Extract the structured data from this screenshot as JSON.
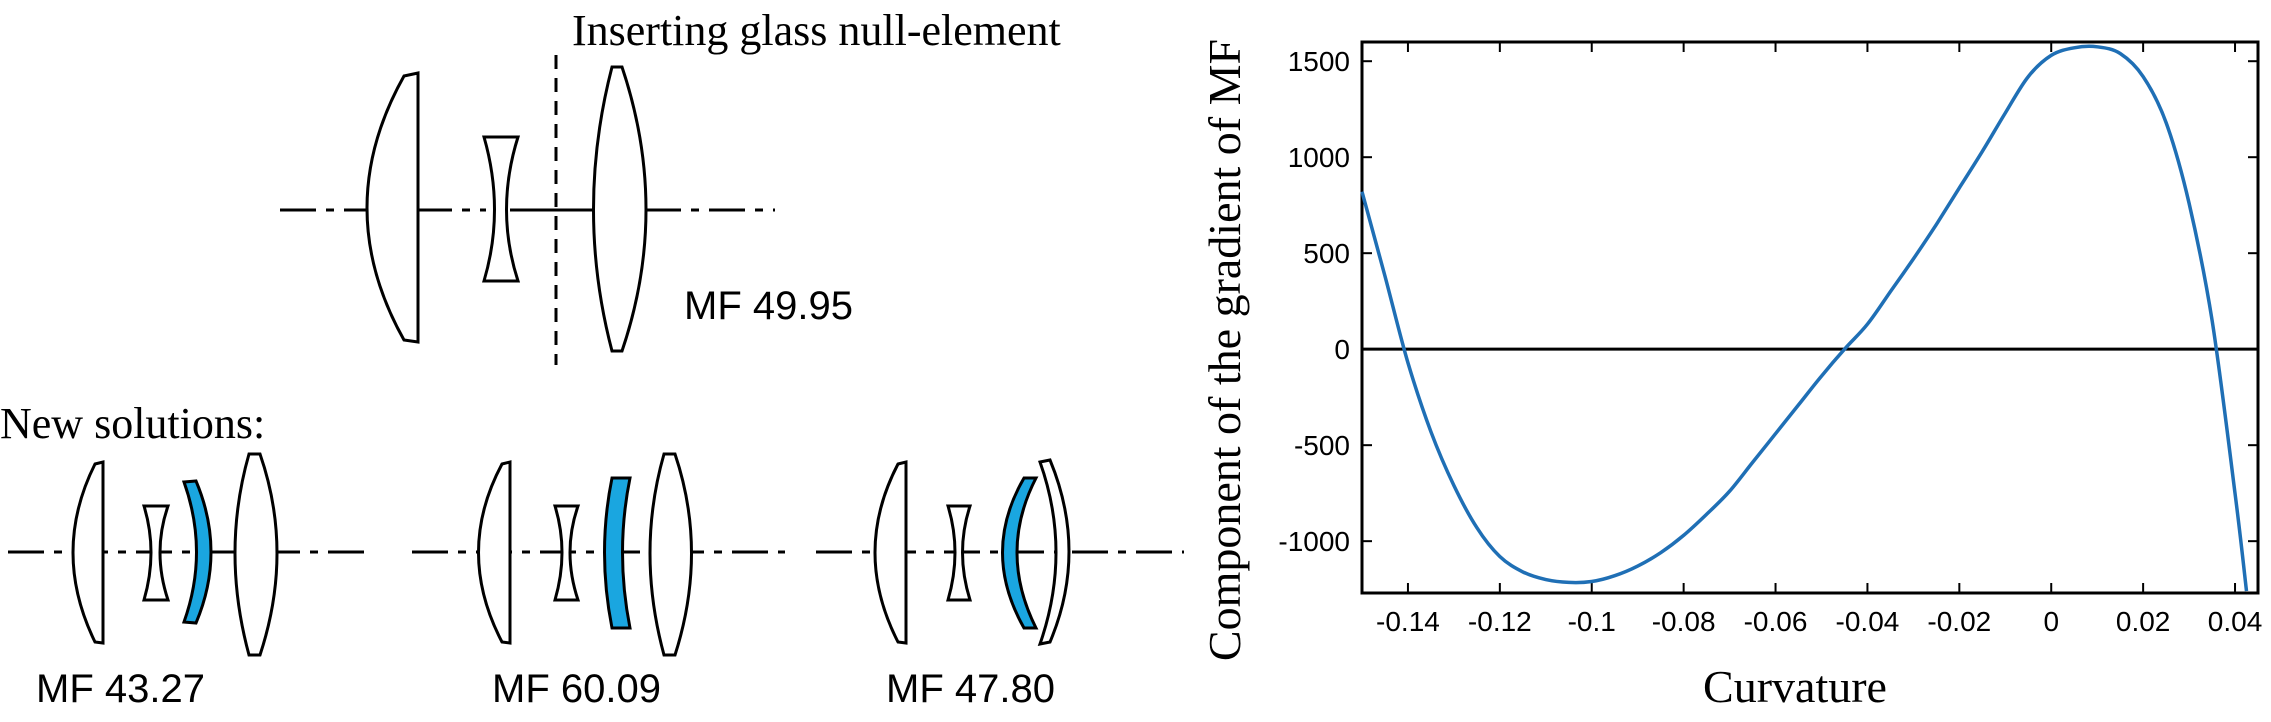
{
  "colors": {
    "highlight": "#1aa6e0",
    "curve": "#1f6fb5",
    "ink": "#000000"
  },
  "diagram": {
    "title": "Inserting glass null-element",
    "original_mf": "MF 49.95",
    "new_solutions_label": "New solutions:",
    "solutions": [
      {
        "mf": "MF 43.27"
      },
      {
        "mf": "MF 60.09"
      },
      {
        "mf": "MF 47.80"
      }
    ]
  },
  "chart_data": {
    "type": "line",
    "title": "",
    "xlabel": "Curvature",
    "ylabel": "Component of the gradient of MF",
    "xlim": [
      -0.15,
      0.045
    ],
    "ylim": [
      -1270,
      1600
    ],
    "xticks": [
      -0.14,
      -0.12,
      -0.1,
      -0.08,
      -0.06,
      -0.04,
      -0.02,
      0,
      0.02,
      0.04
    ],
    "xtick_labels": [
      "-0.14",
      "-0.12",
      "-0.1",
      "-0.08",
      "-0.06",
      "-0.04",
      "-0.02",
      "0",
      "0.02",
      "0.04"
    ],
    "yticks": [
      -1000,
      -500,
      0,
      500,
      1000,
      1500
    ],
    "ytick_labels": [
      "-1000",
      "-500",
      "0",
      "500",
      "1000",
      "1500"
    ],
    "zero_line": true,
    "grid": false,
    "legend": "none",
    "series": [
      {
        "x": [
          -0.15,
          -0.145,
          -0.14,
          -0.135,
          -0.13,
          -0.125,
          -0.12,
          -0.115,
          -0.11,
          -0.105,
          -0.1,
          -0.095,
          -0.09,
          -0.085,
          -0.08,
          -0.075,
          -0.07,
          -0.065,
          -0.06,
          -0.055,
          -0.05,
          -0.045,
          -0.04,
          -0.035,
          -0.03,
          -0.025,
          -0.02,
          -0.015,
          -0.01,
          -0.005,
          0,
          0.005,
          0.01,
          0.015,
          0.02,
          0.025,
          0.03,
          0.035,
          0.04,
          0.0425
        ],
        "y": [
          820,
          380,
          -70,
          -430,
          -710,
          -930,
          -1080,
          -1160,
          -1200,
          -1215,
          -1210,
          -1180,
          -1130,
          -1060,
          -970,
          -860,
          -740,
          -590,
          -440,
          -290,
          -140,
          0,
          130,
          300,
          470,
          650,
          840,
          1030,
          1230,
          1420,
          1530,
          1570,
          1575,
          1540,
          1420,
          1180,
          760,
          150,
          -750,
          -1260
        ]
      }
    ]
  }
}
